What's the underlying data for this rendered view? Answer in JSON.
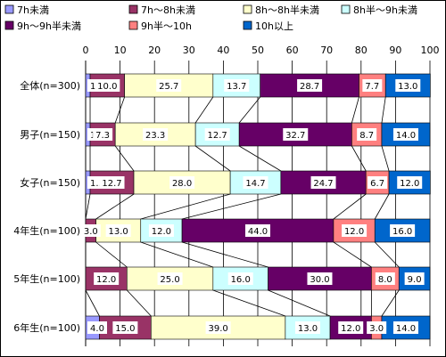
{
  "chart_data": {
    "type": "bar",
    "stacked": true,
    "orientation": "horizontal",
    "categories": [
      "全体(n=300)",
      "男子(n=150)",
      "女子(n=150)",
      "4年生(n=100)",
      "5年生(n=100)",
      "6年生(n=100)"
    ],
    "series": [
      {
        "name": "7h未満",
        "color": "#9999ff",
        "values": [
          1.3,
          1.3,
          1.3,
          0,
          0,
          4.0
        ],
        "labels": [
          "1.3",
          "1.3",
          "1.3",
          "",
          "",
          "4.0"
        ]
      },
      {
        "name": "7h～8h未満",
        "color": "#993366",
        "values": [
          10.0,
          7.3,
          12.7,
          3.0,
          12.0,
          15.0
        ],
        "labels": [
          "10.0",
          "7.3",
          "12.7",
          "3.0",
          "12.0",
          "15.0"
        ]
      },
      {
        "name": "8h～8h半未満",
        "color": "#ffffcc",
        "values": [
          25.7,
          23.3,
          28.0,
          13.0,
          25.0,
          39.0
        ],
        "labels": [
          "25.7",
          "23.3",
          "28.0",
          "13.0",
          "25.0",
          "39.0"
        ]
      },
      {
        "name": "8h半～9h未満",
        "color": "#ccffff",
        "values": [
          13.7,
          12.7,
          14.7,
          12.0,
          16.0,
          13.0
        ],
        "labels": [
          "13.7",
          "12.7",
          "14.7",
          "12.0",
          "16.0",
          "13.0"
        ]
      },
      {
        "name": "9h～9h半未満",
        "color": "#660066",
        "values": [
          28.7,
          32.7,
          24.7,
          44.0,
          30.0,
          12.0
        ],
        "labels": [
          "28.7",
          "32.7",
          "24.7",
          "44.0",
          "30.0",
          "12.0"
        ]
      },
      {
        "name": "9h半～10h",
        "color": "#ff8080",
        "values": [
          7.7,
          8.7,
          6.7,
          12.0,
          8.0,
          3.0
        ],
        "labels": [
          "7.7",
          "8.7",
          "6.7",
          "12.0",
          "8.0",
          "3.0"
        ]
      },
      {
        "name": "10h以上",
        "color": "#0066cc",
        "values": [
          13.0,
          14.0,
          12.0,
          16.0,
          9.0,
          14.0
        ],
        "labels": [
          "13.0",
          "14.0",
          "12.0",
          "16.0",
          "9.0",
          "14.0"
        ]
      }
    ],
    "xlim": [
      0,
      100
    ],
    "xticks": [
      "0",
      "10",
      "20",
      "30",
      "40",
      "50",
      "60",
      "70",
      "80",
      "90",
      "100"
    ],
    "grid": true,
    "legend_position": "top",
    "series_connector_lines": true
  }
}
